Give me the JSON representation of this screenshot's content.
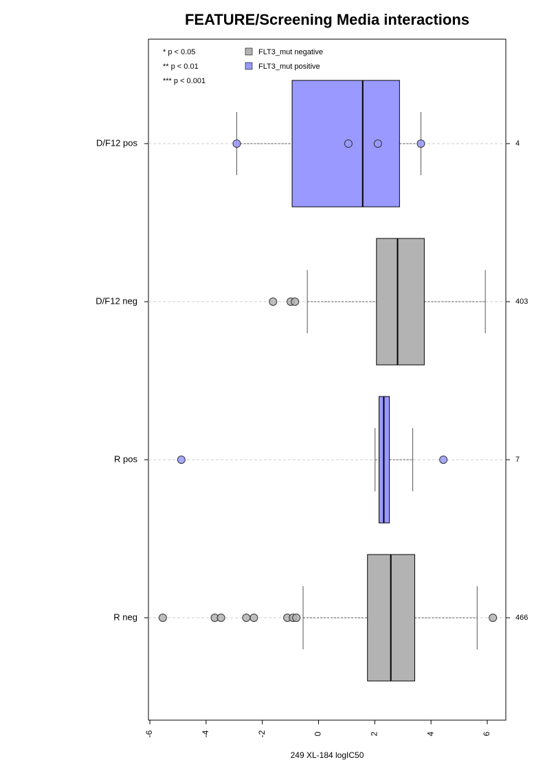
{
  "chart_data": {
    "type": "boxplot",
    "title": "FEATURE/Screening Media interactions",
    "x_label": "249 XL-184 logIC50",
    "xlim": [
      -6.05,
      6.66
    ],
    "xticks": [
      -6,
      -4,
      -2,
      0,
      2,
      4,
      6
    ],
    "annotations": [
      "* p < 0.05",
      "** p < 0.01",
      "*** p < 0.001"
    ],
    "legend": [
      {
        "name": "FLT3_mut negative",
        "color": "#b3b3b3"
      },
      {
        "name": "FLT3_mut positive",
        "color": "#9999ff"
      }
    ],
    "categories": [
      "D/F12 pos",
      "D/F12 neg",
      "R pos",
      "R neg"
    ],
    "counts": [
      4,
      403,
      7,
      466
    ],
    "boxes": [
      {
        "color": "#9999ff",
        "whisker_low": -2.91,
        "q1": -0.94,
        "median": 1.57,
        "q3": 2.88,
        "whisker_high": 3.64,
        "outliers": [
          -2.91,
          1.06,
          2.11,
          3.64
        ]
      },
      {
        "color": "#b3b3b3",
        "whisker_low": -0.4,
        "q1": 2.06,
        "median": 2.81,
        "q3": 3.76,
        "whisker_high": 5.93,
        "outliers": [
          -1.62,
          -0.99,
          -0.84
        ]
      },
      {
        "color": "#9999ff",
        "whisker_low": 2.01,
        "q1": 2.15,
        "median": 2.32,
        "q3": 2.52,
        "whisker_high": 3.35,
        "outliers": [
          -4.88,
          4.44
        ]
      },
      {
        "color": "#b3b3b3",
        "whisker_low": -0.55,
        "q1": 1.74,
        "median": 2.57,
        "q3": 3.42,
        "whisker_high": 5.64,
        "outliers": [
          -5.54,
          -3.69,
          -3.47,
          -2.57,
          -2.3,
          -1.11,
          -0.91,
          -0.79,
          6.2
        ]
      }
    ]
  }
}
